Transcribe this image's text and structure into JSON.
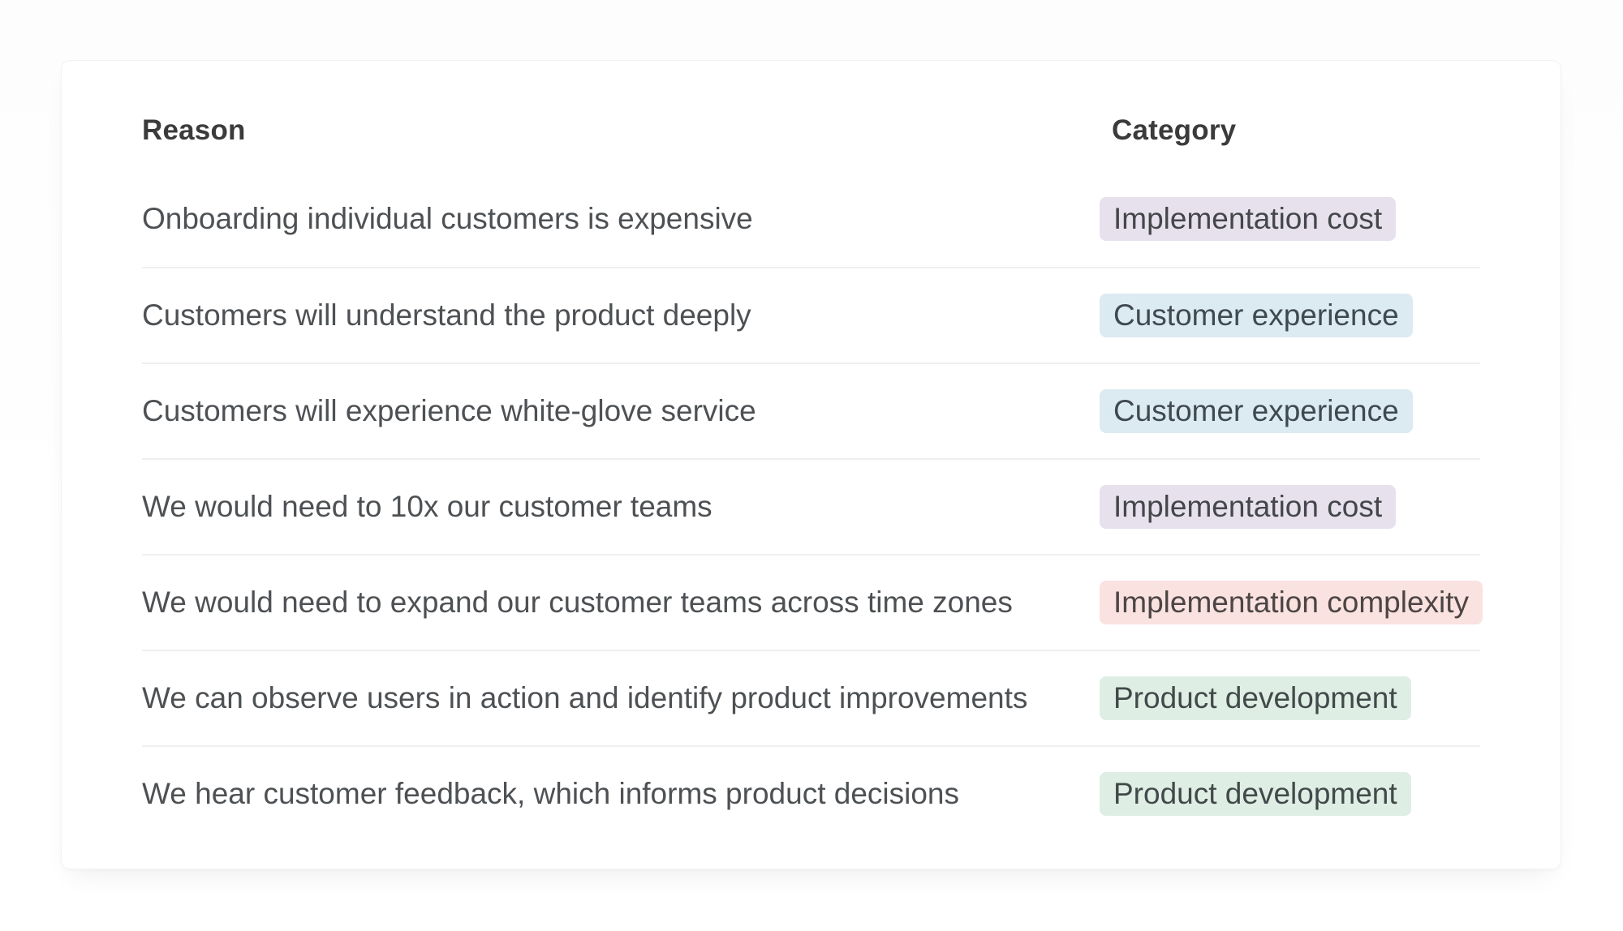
{
  "card": {
    "columns": {
      "reason_label": "Reason",
      "category_label": "Category"
    },
    "rows": [
      {
        "reason": "Onboarding individual customers is expensive",
        "category": "Implementation cost",
        "category_key": "implementation_cost"
      },
      {
        "reason": "Customers will understand the product deeply",
        "category": "Customer experience",
        "category_key": "customer_experience"
      },
      {
        "reason": "Customers will experience white-glove service",
        "category": "Customer experience",
        "category_key": "customer_experience"
      },
      {
        "reason": "We would need to 10x our customer teams",
        "category": "Implementation cost",
        "category_key": "implementation_cost"
      },
      {
        "reason": "We would need to expand our customer teams across time zones",
        "category": "Implementation complexity",
        "category_key": "implementation_complexity"
      },
      {
        "reason": "We can observe users in action and identify product improvements",
        "category": "Product development",
        "category_key": "product_development"
      },
      {
        "reason": "We hear customer feedback, which informs product decisions",
        "category": "Product development",
        "category_key": "product_development"
      }
    ],
    "category_styles": {
      "implementation_cost": {
        "bg": "#E6E1ED",
        "text": "#45464C"
      },
      "customer_experience": {
        "bg": "#DCEAF2",
        "text": "#3F4A50"
      },
      "implementation_complexity": {
        "bg": "#F9E2E0",
        "text": "#4C4543"
      },
      "product_development": {
        "bg": "#DFEEE4",
        "text": "#41494A"
      }
    }
  }
}
